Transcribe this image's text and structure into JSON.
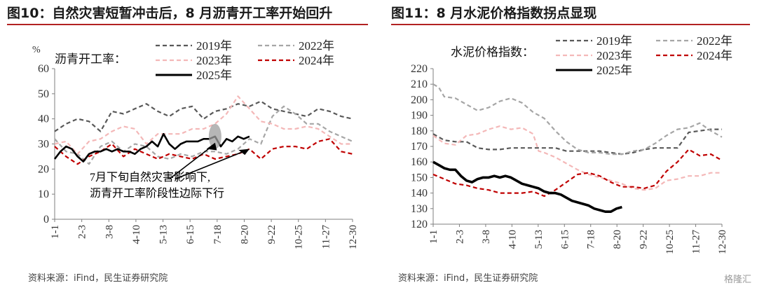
{
  "left": {
    "title": "图10：自然灾害短暂冲击后，8 月沥青开工率开始回升",
    "source": "资料来源：iFind，民生证券研究院",
    "annotation": [
      "7月下旬自然灾害影响下,",
      "沥青开工率阶段性边际下行"
    ]
  },
  "right": {
    "title": "图11：8 月水泥价格指数拐点显现",
    "source": "资料来源：iFind，民生证券研究院"
  },
  "watermark": "格隆汇",
  "colors": {
    "2019": "#595959",
    "2022": "#a6a6a6",
    "2023": "#f4b8b8",
    "2024": "#c00000",
    "2025": "#000000",
    "title_rule": "#b22222"
  },
  "chart_data": [
    {
      "type": "line",
      "ylabel": "沥青开工率：",
      "unit": "%",
      "ylim": [
        0,
        60
      ],
      "yticks": [
        0,
        10,
        20,
        30,
        40,
        50,
        60
      ],
      "x_ticks": [
        "1-1",
        "2-3",
        "3-8",
        "4-10",
        "5-13",
        "6-15",
        "7-18",
        "8-20",
        "9-22",
        "10-25",
        "11-27",
        "12-30"
      ],
      "x_range": [
        0,
        52
      ],
      "legend": "top",
      "series": [
        {
          "name": "2019年",
          "style": "dashed",
          "x": [
            0,
            2,
            4,
            6,
            8,
            10,
            12,
            14,
            16,
            18,
            20,
            22,
            24,
            26,
            28,
            30,
            32,
            34,
            36,
            38,
            40,
            42,
            44,
            46,
            48,
            50,
            52
          ],
          "y": [
            35,
            38,
            40,
            39,
            35,
            43,
            42,
            44,
            46,
            43,
            41,
            44,
            45,
            40,
            43,
            44,
            46,
            45,
            47,
            44,
            43,
            42,
            41,
            44,
            43,
            41,
            40
          ]
        },
        {
          "name": "2022年",
          "style": "dashed",
          "x": [
            0,
            2,
            4,
            6,
            8,
            10,
            12,
            14,
            16,
            18,
            20,
            22,
            24,
            26,
            28,
            30,
            32,
            34,
            36,
            38,
            40,
            42,
            44,
            46,
            48,
            50,
            52
          ],
          "y": [
            32,
            27,
            26,
            22,
            29,
            31,
            27,
            30,
            29,
            25,
            24,
            26,
            25,
            27,
            27,
            26,
            28,
            32,
            30,
            41,
            45,
            42,
            38,
            38,
            35,
            33,
            31
          ]
        },
        {
          "name": "2023年",
          "style": "dashed",
          "x": [
            0,
            2,
            4,
            6,
            8,
            10,
            12,
            14,
            16,
            18,
            20,
            22,
            24,
            26,
            28,
            30,
            32,
            34,
            36,
            38,
            40,
            42,
            44,
            46,
            48,
            50,
            52
          ],
          "y": [
            30,
            31,
            26,
            31,
            32,
            35,
            37,
            36,
            30,
            34,
            34,
            34,
            36,
            36,
            38,
            42,
            49,
            44,
            39,
            38,
            36,
            36,
            37,
            36,
            33,
            30,
            30
          ]
        },
        {
          "name": "2024年",
          "style": "dashed",
          "x": [
            0,
            2,
            4,
            6,
            8,
            10,
            12,
            14,
            16,
            18,
            20,
            22,
            24,
            26,
            28,
            30,
            32,
            34,
            36,
            38,
            40,
            42,
            44,
            46,
            48,
            50,
            52
          ],
          "y": [
            29,
            25,
            22,
            25,
            27,
            30,
            25,
            28,
            26,
            24,
            26,
            25,
            24,
            26,
            24,
            25,
            26,
            28,
            24,
            28,
            29,
            29,
            28,
            31,
            32,
            27,
            26
          ]
        },
        {
          "name": "2025年",
          "style": "solid",
          "x": [
            0,
            1,
            2,
            3,
            4,
            5,
            6,
            7,
            8,
            9,
            10,
            11,
            12,
            13,
            14,
            15,
            16,
            17,
            18,
            19,
            20,
            21,
            22,
            23,
            24,
            25,
            26,
            27,
            28,
            29,
            30,
            31,
            32,
            33,
            34
          ],
          "y": [
            24,
            27,
            29,
            28,
            25,
            23,
            26,
            27,
            27,
            28,
            27,
            28,
            27,
            27,
            26,
            28,
            29,
            31,
            29,
            34,
            30,
            28,
            30,
            31,
            31,
            31,
            32,
            32,
            33,
            29,
            32,
            31,
            33,
            32,
            33
          ]
        }
      ]
    },
    {
      "type": "line",
      "ylabel": "水泥价格指数：",
      "ylim": [
        120,
        220
      ],
      "yticks": [
        120,
        130,
        140,
        150,
        160,
        170,
        180,
        190,
        200,
        210,
        220
      ],
      "x_ticks": [
        "1-1",
        "2-3",
        "3-8",
        "4-10",
        "5-13",
        "6-15",
        "7-18",
        "8-20",
        "9-22",
        "10-25",
        "11-27",
        "12-30"
      ],
      "x_range": [
        0,
        52
      ],
      "legend": "top",
      "series": [
        {
          "name": "2019年",
          "style": "dashed",
          "x": [
            0,
            2,
            4,
            6,
            8,
            10,
            12,
            14,
            16,
            18,
            20,
            22,
            24,
            26,
            28,
            30,
            32,
            34,
            36,
            38,
            40,
            42,
            44,
            46,
            48,
            50,
            52
          ],
          "y": [
            178,
            174,
            173,
            173,
            169,
            168,
            168,
            169,
            169,
            169,
            169,
            169,
            167,
            167,
            167,
            167,
            166,
            165,
            166,
            168,
            169,
            169,
            169,
            179,
            180,
            181,
            181
          ]
        },
        {
          "name": "2022年",
          "style": "dashed",
          "x": [
            0,
            1,
            2,
            4,
            6,
            8,
            10,
            12,
            14,
            16,
            18,
            20,
            22,
            24,
            26,
            28,
            30,
            32,
            34,
            36,
            38,
            40,
            42,
            44,
            46,
            48,
            50,
            52
          ],
          "y": [
            210,
            208,
            202,
            201,
            197,
            193,
            195,
            199,
            201,
            198,
            192,
            188,
            180,
            173,
            168,
            166,
            166,
            165,
            165,
            167,
            168,
            172,
            177,
            181,
            182,
            185,
            180,
            176
          ]
        },
        {
          "name": "2023年",
          "style": "dashed",
          "x": [
            0,
            2,
            4,
            6,
            8,
            10,
            12,
            14,
            16,
            18,
            19,
            20,
            22,
            24,
            26,
            28,
            30,
            32,
            34,
            36,
            38,
            40,
            42,
            44,
            46,
            48,
            50,
            52
          ],
          "y": [
            177,
            172,
            171,
            177,
            178,
            181,
            183,
            181,
            182,
            178,
            167,
            166,
            163,
            159,
            155,
            152,
            150,
            148,
            146,
            143,
            142,
            143,
            148,
            149,
            151,
            151,
            153,
            153
          ]
        },
        {
          "name": "2024年",
          "style": "dashed",
          "x": [
            0,
            2,
            4,
            6,
            8,
            10,
            12,
            14,
            16,
            18,
            20,
            22,
            24,
            26,
            28,
            30,
            32,
            34,
            36,
            38,
            40,
            42,
            44,
            46,
            48,
            50,
            52
          ],
          "y": [
            152,
            149,
            146,
            145,
            143,
            142,
            140,
            140,
            140,
            141,
            138,
            142,
            147,
            152,
            153,
            151,
            147,
            144,
            144,
            143,
            145,
            154,
            160,
            168,
            164,
            165,
            161
          ]
        },
        {
          "name": "2025年",
          "style": "solid",
          "x": [
            0,
            1,
            2,
            3,
            4,
            5,
            6,
            7,
            8,
            9,
            10,
            11,
            12,
            13,
            14,
            15,
            16,
            17,
            18,
            19,
            20,
            21,
            22,
            23,
            24,
            25,
            26,
            27,
            28,
            29,
            30,
            31,
            32,
            33,
            34
          ],
          "y": [
            160,
            158,
            156,
            155,
            155,
            151,
            148,
            147,
            149,
            150,
            150,
            151,
            150,
            151,
            150,
            148,
            146,
            145,
            144,
            143,
            141,
            140,
            140,
            139,
            137,
            135,
            134,
            133,
            132,
            130,
            129,
            128,
            128,
            130,
            131
          ]
        }
      ]
    }
  ]
}
